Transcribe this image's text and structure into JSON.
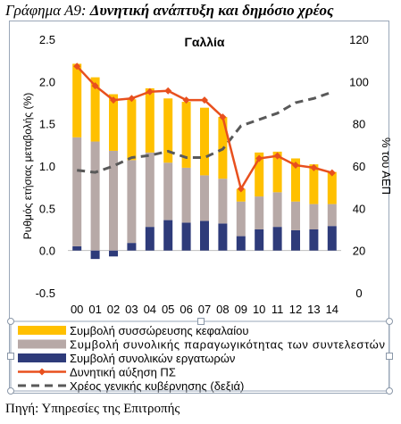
{
  "figure": {
    "title_prefix": "Γράφημα Α9:",
    "title_text": "Δυνητική ανάπτυξη και δημόσιο χρέος",
    "source": "Πηγή: Υπηρεσίες της Επιτροπής"
  },
  "colors": {
    "capital": "#ffc000",
    "tfp": "#b7a9a7",
    "labour": "#2e3b7a",
    "potential": "#e8501e",
    "debt": "#595959"
  },
  "chart_data": {
    "type": "bar",
    "title": "Γαλλία",
    "ylabel_left": "Ρυθμός ετήσιας μεταβολής (%)",
    "ylabel_right": "% του ΑΕΠ",
    "categories": [
      "00",
      "01",
      "02",
      "03",
      "04",
      "05",
      "06",
      "07",
      "08",
      "09",
      "10",
      "11",
      "12",
      "13",
      "14"
    ],
    "ylim_left": [
      -0.5,
      2.5
    ],
    "yticks_left": [
      "-0.5",
      "0.0",
      "0.5",
      "1.0",
      "1.5",
      "2.0",
      "2.5"
    ],
    "ylim_right": [
      0,
      120
    ],
    "yticks_right": [
      "0",
      "20",
      "40",
      "60",
      "80",
      "100",
      "120"
    ],
    "series": [
      {
        "name": "Συμβολή συσσώρευσης κεφαλαίου",
        "type": "bar",
        "values": [
          0.87,
          0.76,
          0.67,
          0.72,
          0.76,
          0.76,
          0.78,
          0.8,
          0.73,
          0.15,
          0.52,
          0.48,
          0.51,
          0.47,
          0.38
        ]
      },
      {
        "name": "Συμβολή συνολικής παραγωγικότητας των συντελεστών",
        "type": "bar",
        "values": [
          1.29,
          1.29,
          1.18,
          0.98,
          0.88,
          0.68,
          0.65,
          0.54,
          0.53,
          0.41,
          0.39,
          0.41,
          0.34,
          0.3,
          0.26
        ]
      },
      {
        "name": "Συμβολή συνολικών εργατωρών",
        "type": "bar",
        "values": [
          0.05,
          -0.1,
          -0.07,
          0.09,
          0.28,
          0.36,
          0.33,
          0.35,
          0.32,
          0.17,
          0.25,
          0.28,
          0.24,
          0.25,
          0.29
        ]
      },
      {
        "name": "Δυνητική αύξηση ΠΣ",
        "type": "line",
        "values": [
          2.18,
          1.95,
          1.78,
          1.8,
          1.88,
          1.89,
          1.78,
          1.78,
          1.58,
          0.73,
          1.09,
          1.12,
          1.01,
          0.98,
          0.92
        ]
      },
      {
        "name": "Χρέος γενικής κυβέρνησης (δεξιά)",
        "type": "line",
        "axis": "right",
        "values": [
          58,
          57,
          60,
          64,
          65,
          67,
          64,
          64,
          68,
          79,
          82,
          85,
          90,
          92,
          95
        ]
      }
    ]
  }
}
